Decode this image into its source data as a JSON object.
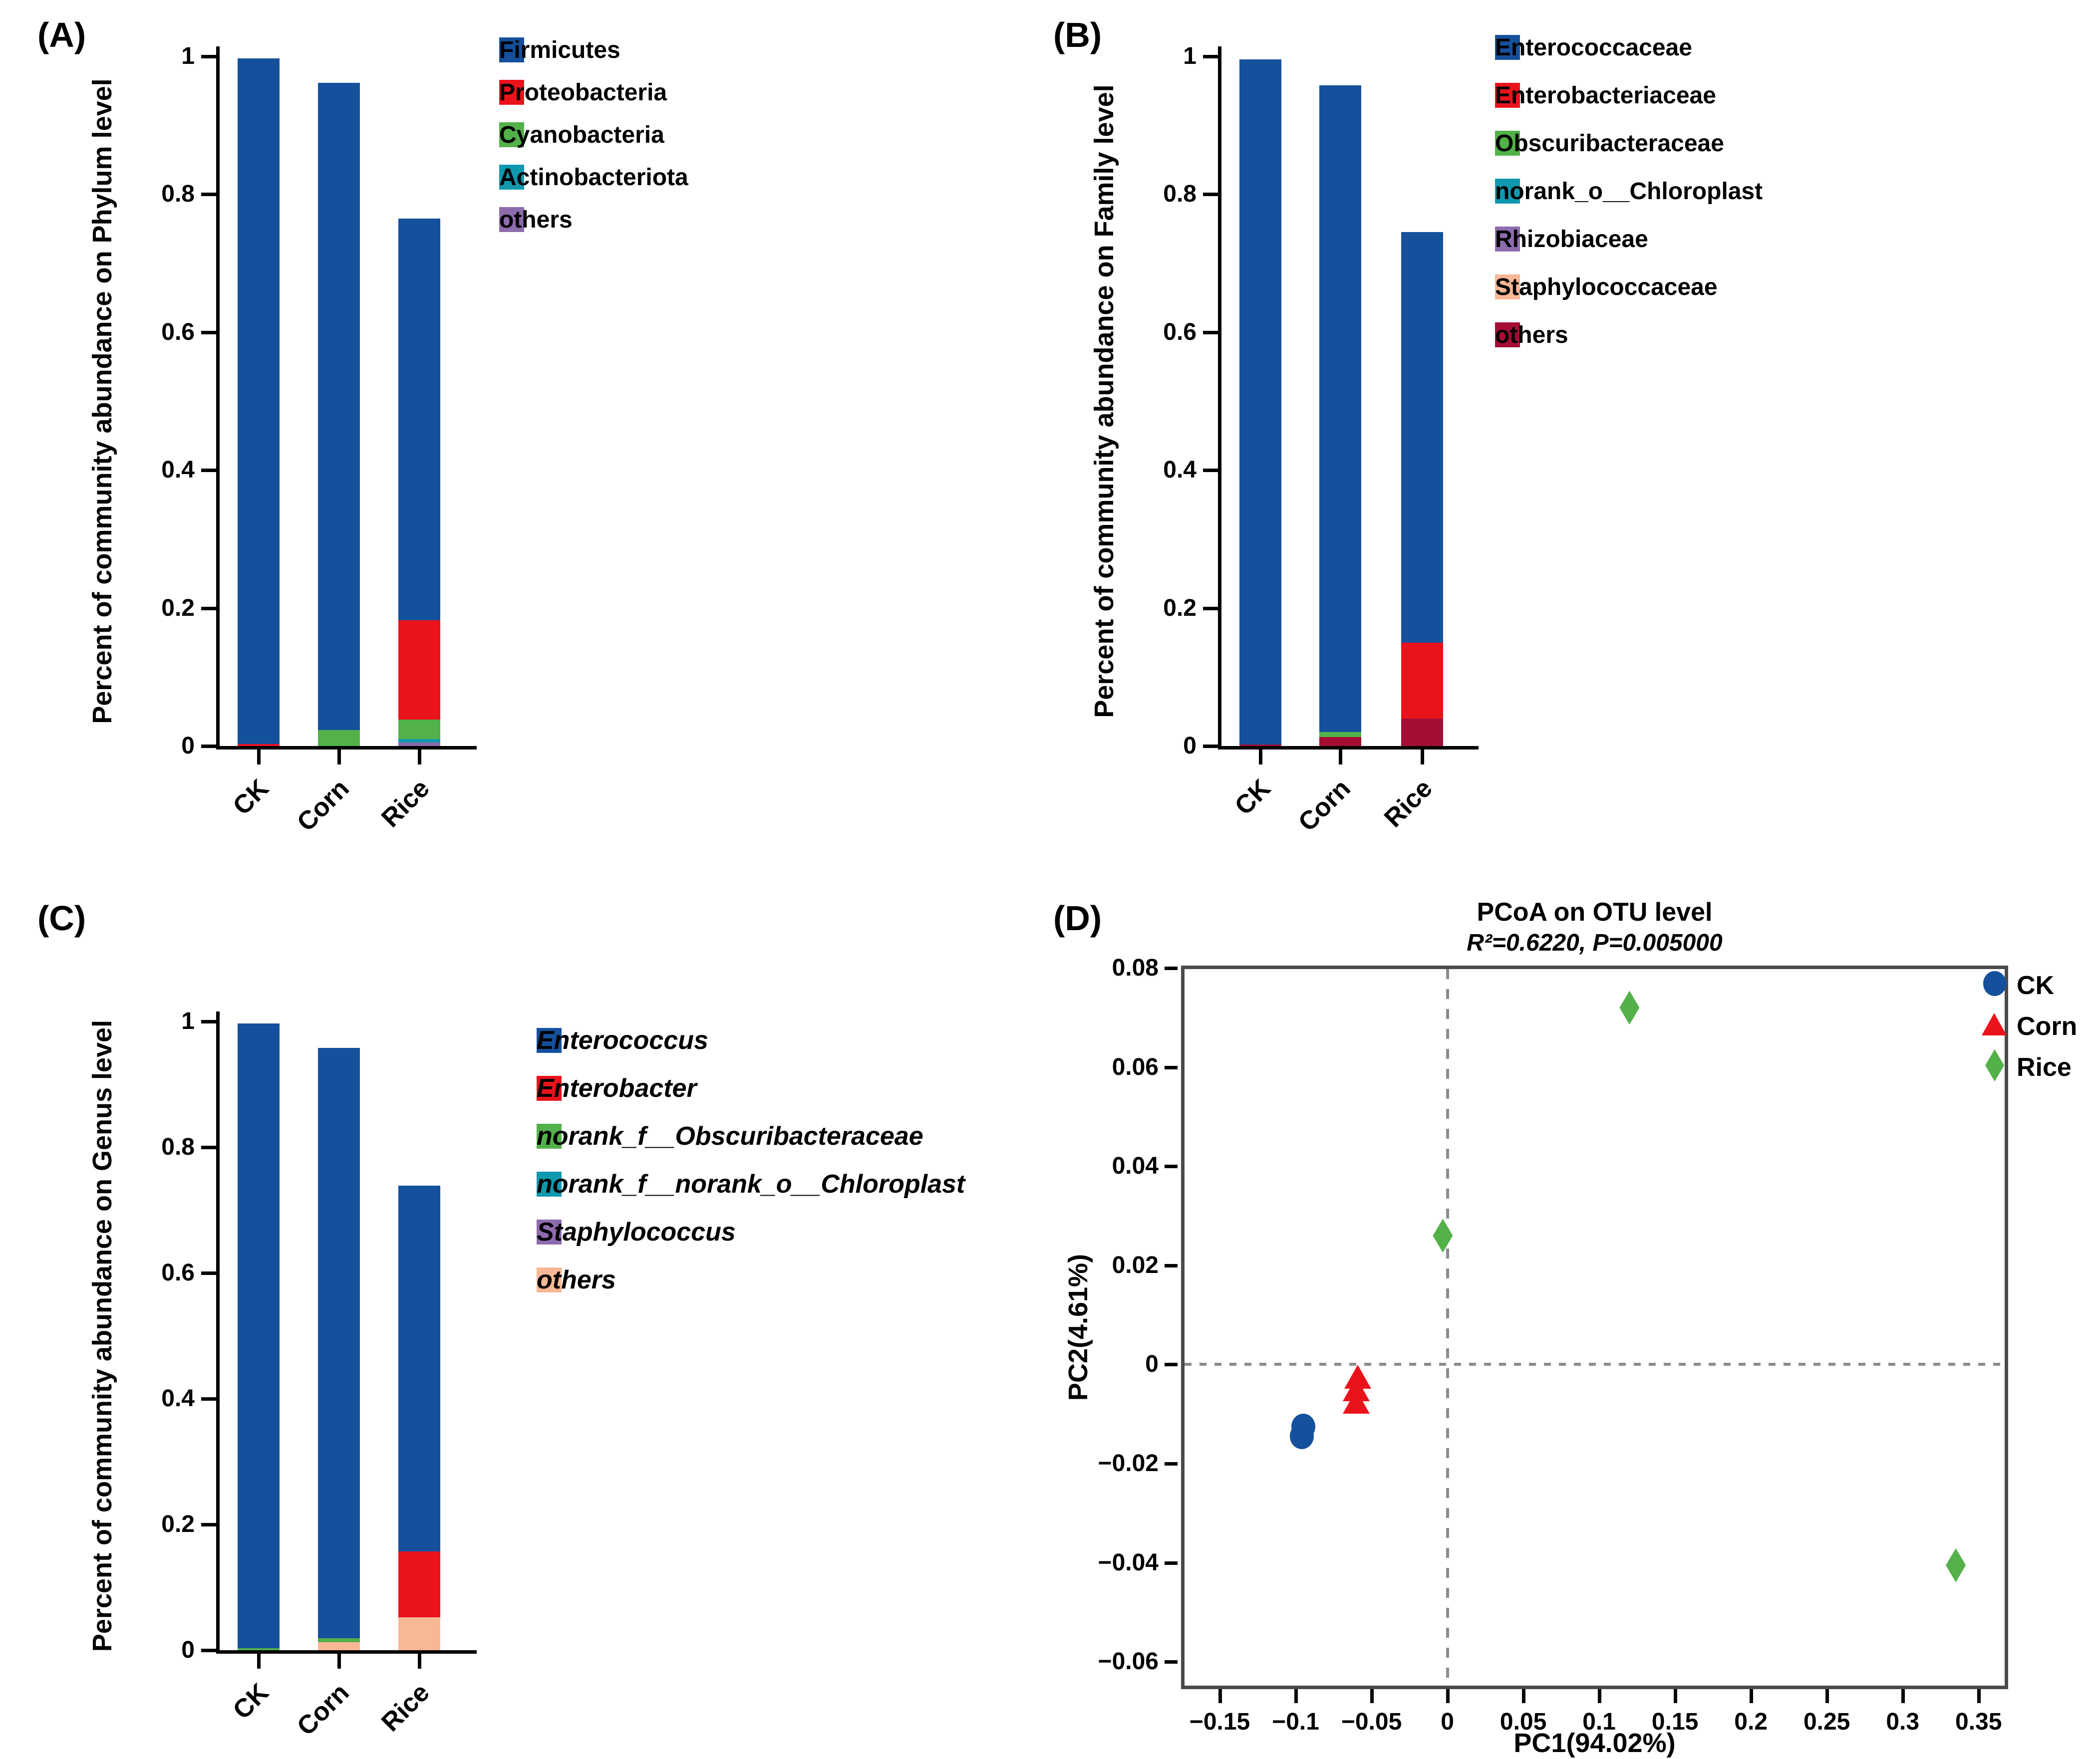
{
  "colors": {
    "blue": "#15509d",
    "red": "#ea131c",
    "green": "#53b14a",
    "teal": "#0f98ae",
    "purple": "#8e6bad",
    "salmon": "#f8b795",
    "maroon": "#a50d35",
    "box_gray": "#4a4a4a",
    "dash_gray": "#8c8c8c"
  },
  "panels": {
    "A": {
      "label": "(A)",
      "ylabel": "Percent of community abundance on Phylum level"
    },
    "B": {
      "label": "(B)",
      "ylabel": "Percent of community abundance on Family level"
    },
    "C": {
      "label": "(C)",
      "ylabel": "Percent of community abundance on Genus level"
    },
    "D": {
      "label": "(D)",
      "title": "PCoA on OTU level",
      "subtitle": "R²=0.6220, P=0.005000",
      "xlabel": "PC1(94.02%)",
      "ylabel": "PC2(4.61%)"
    }
  },
  "chart_data": [
    {
      "id": "A",
      "type": "bar",
      "stacked": true,
      "title": "",
      "ylabel": "Percent of community abundance on Phylum level",
      "categories": [
        "CK",
        "Corn",
        "Rice"
      ],
      "ytick_labels": [
        "0",
        "0.2",
        "0.4",
        "0.6",
        "0.8",
        "1"
      ],
      "yticks": [
        0,
        0.2,
        0.4,
        0.6,
        0.8,
        1
      ],
      "ylim": [
        0,
        1
      ],
      "legend_position": "right",
      "legend_italic": false,
      "series": [
        {
          "name": "Firmicutes",
          "color": "blue",
          "values": [
            0.997,
            0.962,
            0.765
          ]
        },
        {
          "name": "Proteobacteria",
          "color": "red",
          "values": [
            0.003,
            0.015,
            0.182
          ]
        },
        {
          "name": "Cyanobacteria",
          "color": "green",
          "values": [
            0,
            0.023,
            0.038
          ]
        },
        {
          "name": "Actinobacteriota",
          "color": "teal",
          "values": [
            0,
            0,
            0.01
          ]
        },
        {
          "name": "others",
          "color": "purple",
          "values": [
            0,
            0,
            0.005
          ]
        }
      ]
    },
    {
      "id": "B",
      "type": "bar",
      "stacked": true,
      "title": "",
      "ylabel": "Percent of community abundance on Family level",
      "categories": [
        "CK",
        "Corn",
        "Rice"
      ],
      "ytick_labels": [
        "0",
        "0.2",
        "0.4",
        "0.6",
        "0.8",
        "1"
      ],
      "yticks": [
        0,
        0.2,
        0.4,
        0.6,
        0.8,
        1
      ],
      "ylim": [
        0,
        1
      ],
      "legend_position": "right",
      "legend_italic": false,
      "series": [
        {
          "name": "Enterococcaceae",
          "color": "blue",
          "values": [
            0.996,
            0.958,
            0.745
          ]
        },
        {
          "name": "Enterobacteriaceae",
          "color": "red",
          "values": [
            0.002,
            0.005,
            0.15
          ]
        },
        {
          "name": "Obscuribacteraceae",
          "color": "green",
          "values": [
            0,
            0.02,
            0.022
          ]
        },
        {
          "name": "norank_o__Chloroplast",
          "color": "teal",
          "values": [
            0,
            0.004,
            0.016
          ]
        },
        {
          "name": "Rhizobiaceae",
          "color": "purple",
          "values": [
            0,
            0,
            0.014
          ]
        },
        {
          "name": "Staphylococcaceae",
          "color": "salmon",
          "values": [
            0,
            0,
            0.013
          ]
        },
        {
          "name": "others",
          "color": "maroon",
          "values": [
            0.002,
            0.013,
            0.04
          ]
        }
      ]
    },
    {
      "id": "C",
      "type": "bar",
      "stacked": true,
      "title": "",
      "ylabel": "Percent of community abundance on Genus level",
      "categories": [
        "CK",
        "Corn",
        "Rice"
      ],
      "ytick_labels": [
        "0",
        "0.2",
        "0.4",
        "0.6",
        "0.8",
        "1"
      ],
      "yticks": [
        0,
        0.2,
        0.4,
        0.6,
        0.8,
        1
      ],
      "ylim": [
        0,
        1
      ],
      "legend_position": "right",
      "legend_italic": true,
      "series": [
        {
          "name": "Enterococcus",
          "color": "blue",
          "values": [
            0.997,
            0.958,
            0.739
          ]
        },
        {
          "name": "Enterobacter",
          "color": "red",
          "values": [
            0,
            0.005,
            0.157
          ]
        },
        {
          "name": "norank_f__Obscuribacteraceae",
          "color": "green",
          "values": [
            0.003,
            0.019,
            0.024
          ]
        },
        {
          "name": "norank_f__norank_o__Chloroplast",
          "color": "teal",
          "values": [
            0,
            0.005,
            0.015
          ]
        },
        {
          "name": "Staphylococcus",
          "color": "purple",
          "values": [
            0,
            0,
            0.013
          ]
        },
        {
          "name": "others",
          "color": "salmon",
          "values": [
            0,
            0.013,
            0.052
          ]
        }
      ]
    },
    {
      "id": "D",
      "type": "scatter",
      "title": "PCoA on OTU level",
      "subtitle": "R²=0.6220, P=0.005000",
      "xlabel": "PC1(94.02%)",
      "ylabel": "PC2(4.61%)",
      "xlim": [
        -0.1755,
        0.3695
      ],
      "ylim": [
        -0.0655,
        0.0805
      ],
      "xticks": [
        -0.15,
        -0.1,
        -0.05,
        0,
        0.05,
        0.1,
        0.15,
        0.2,
        0.25,
        0.3,
        0.35
      ],
      "xtick_labels": [
        "−0.15",
        "−0.1",
        "−0.05",
        "0",
        "0.05",
        "0.1",
        "0.15",
        "0.2",
        "0.25",
        "0.3",
        "0.35"
      ],
      "yticks": [
        -0.06,
        -0.04,
        -0.02,
        0,
        0.02,
        0.04,
        0.06,
        0.08
      ],
      "ytick_labels": [
        "−0.06",
        "−0.04",
        "−0.02",
        "0",
        "0.02",
        "0.04",
        "0.06",
        "0.08"
      ],
      "ref_lines": {
        "vertical_x": 0,
        "horizontal_y": 0
      },
      "groups": [
        {
          "name": "CK",
          "marker": "circle",
          "color": "blue",
          "points": [
            [
              -0.095,
              -0.0125
            ],
            [
              -0.096,
              -0.0145
            ]
          ]
        },
        {
          "name": "Corn",
          "marker": "triangle",
          "color": "red",
          "points": [
            [
              -0.059,
              -0.0025
            ],
            [
              -0.06,
              -0.005
            ],
            [
              -0.06,
              -0.0075
            ]
          ]
        },
        {
          "name": "Rice",
          "marker": "diamond",
          "color": "green",
          "points": [
            [
              0.12,
              0.072
            ],
            [
              -0.003,
              0.026
            ],
            [
              0.335,
              -0.0405
            ]
          ]
        }
      ]
    }
  ]
}
